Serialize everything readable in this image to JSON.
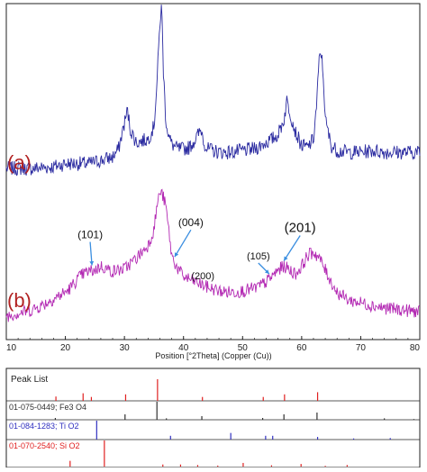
{
  "chart_data": [
    {
      "type": "line",
      "xlabel": "Position [°2Theta] (Copper (Cu))",
      "xlim": [
        10,
        80
      ],
      "x_ticks": [
        "10",
        "20",
        "30",
        "40",
        "50",
        "60",
        "70",
        "80"
      ],
      "series": [
        {
          "name": "(a)",
          "color": "#2a2aa0",
          "x": [
            10,
            14,
            18,
            20,
            22,
            24,
            26,
            28,
            29,
            30,
            30.5,
            31,
            32,
            33,
            34,
            35,
            35.5,
            36,
            36.3,
            36.6,
            37,
            37.5,
            38,
            39,
            40,
            41,
            42,
            43,
            43.5,
            44,
            45,
            46,
            48,
            50,
            52,
            53,
            54,
            55,
            56,
            57,
            57.5,
            58,
            59,
            60,
            61,
            62,
            62.5,
            63,
            63.3,
            63.7,
            64,
            65,
            66,
            68,
            70,
            72,
            74,
            76,
            78,
            80
          ],
          "y": [
            10,
            10,
            11,
            13,
            13,
            13,
            15,
            17,
            22,
            38,
            46,
            34,
            26,
            27,
            28,
            36,
            62,
            100,
            110,
            70,
            40,
            30,
            25,
            22,
            22,
            23,
            28,
            34,
            26,
            22,
            21,
            20,
            20,
            21,
            22,
            24,
            26,
            28,
            31,
            40,
            52,
            45,
            32,
            24,
            23,
            28,
            48,
            78,
            82,
            65,
            40,
            24,
            21,
            20,
            20,
            21,
            20,
            20,
            20,
            20
          ]
        },
        {
          "name": "(b)",
          "color": "#b329b3",
          "x": [
            10,
            12,
            14,
            16,
            18,
            20,
            21,
            22,
            23,
            24,
            25,
            26,
            27,
            28,
            30,
            32,
            34,
            35,
            35.5,
            36,
            36.5,
            37,
            37.5,
            38,
            39,
            40,
            42,
            44,
            46,
            48,
            50,
            52,
            53,
            54,
            55,
            56,
            57,
            58,
            59,
            60,
            61,
            62,
            63,
            64,
            65,
            66,
            68,
            70,
            72,
            74,
            76,
            78,
            80
          ],
          "y": [
            12,
            14,
            16,
            20,
            25,
            30,
            34,
            40,
            44,
            46,
            47,
            50,
            48,
            46,
            48,
            56,
            66,
            78,
            96,
            107,
            104,
            96,
            78,
            58,
            48,
            42,
            38,
            34,
            31,
            30,
            31,
            33,
            35,
            38,
            42,
            47,
            50,
            47,
            44,
            50,
            58,
            61,
            56,
            47,
            38,
            30,
            24,
            22,
            20,
            18,
            17,
            16,
            15
          ]
        }
      ],
      "annotations": [
        "(101)",
        "(004)",
        "(200)",
        "(105)",
        "(201)"
      ],
      "annotation_x": [
        24.5,
        38.5,
        44.5,
        54.5,
        57
      ],
      "grid": false,
      "legend": "none"
    },
    {
      "type": "scatter",
      "title": "Peak List",
      "xlim": [
        10,
        80
      ],
      "references": [
        {
          "name": "01-075-0449; Fe3 O4",
          "color": "#303030",
          "x": [
            18.3,
            30.1,
            35.5,
            37.1,
            43.1,
            53.4,
            57.0,
            62.6,
            74.0,
            79.0
          ],
          "intensity": [
            10,
            30,
            100,
            8,
            20,
            10,
            30,
            40,
            8,
            4
          ]
        },
        {
          "name": "01-084-1283; Ti O2",
          "color": "#3030c0",
          "x": [
            25.3,
            37.8,
            48.0,
            53.9,
            55.1,
            62.7,
            68.8,
            75.0
          ],
          "intensity": [
            100,
            20,
            35,
            20,
            20,
            14,
            6,
            8
          ]
        },
        {
          "name": "01-070-2540; Si O2",
          "color": "#e02020",
          "x": [
            20.8,
            26.6,
            36.5,
            39.5,
            42.4,
            45.8,
            50.1,
            54.9,
            59.9,
            64.0,
            67.7
          ],
          "intensity": [
            22,
            100,
            8,
            8,
            6,
            4,
            14,
            5,
            10,
            3,
            6
          ]
        }
      ],
      "top_row_x": [
        18.4,
        23.0,
        24.4,
        30.2,
        35.6,
        43.2,
        53.5,
        57.1,
        62.7
      ],
      "top_row_intensity": [
        20,
        35,
        18,
        30,
        100,
        18,
        18,
        30,
        40
      ],
      "top_row_colors": [
        "#e02020",
        "#e02020",
        "#e02020",
        "#e02020",
        "#e02020",
        "#e02020",
        "#e02020",
        "#e02020",
        "#e02020"
      ]
    }
  ],
  "labels": {
    "a": "(a)",
    "b": "(b)"
  }
}
